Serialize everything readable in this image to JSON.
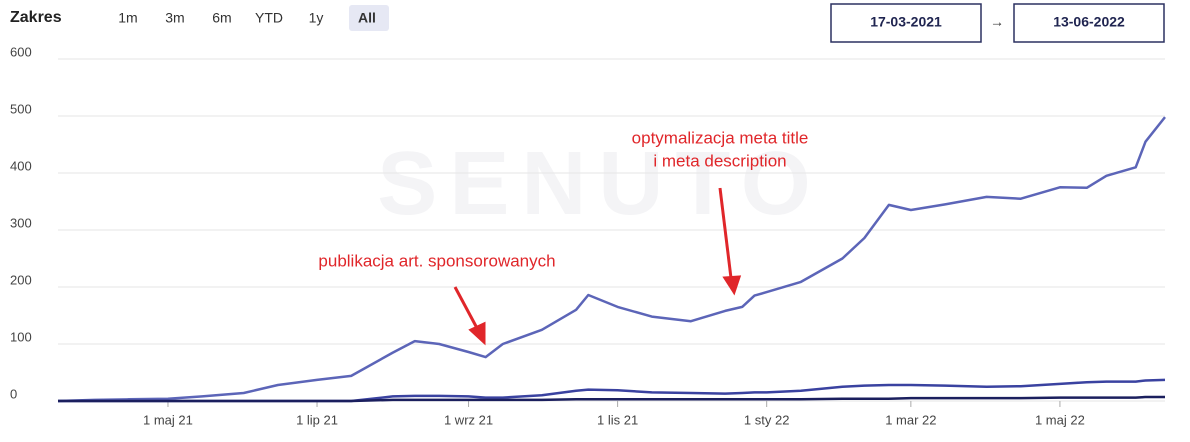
{
  "toolbar": {
    "label": "Zakres",
    "ranges": [
      "1m",
      "3m",
      "6m",
      "YTD",
      "1y",
      "All"
    ],
    "active": 5
  },
  "date_range": {
    "from": "17-03-2021",
    "separator": "→",
    "to": "13-06-2022"
  },
  "chart_data": {
    "type": "line",
    "watermark": "SENUTO",
    "x": [
      "2021-03-17",
      "2021-04-01",
      "2021-04-15",
      "2021-05-01",
      "2021-05-15",
      "2021-06-01",
      "2021-06-15",
      "2021-07-01",
      "2021-07-15",
      "2021-08-01",
      "2021-08-10",
      "2021-08-20",
      "2021-09-01",
      "2021-09-08",
      "2021-09-15",
      "2021-10-01",
      "2021-10-15",
      "2021-10-20",
      "2021-11-01",
      "2021-11-15",
      "2021-12-01",
      "2021-12-15",
      "2021-12-22",
      "2021-12-27",
      "2022-01-01",
      "2022-01-15",
      "2022-02-01",
      "2022-02-10",
      "2022-02-20",
      "2022-03-01",
      "2022-03-15",
      "2022-04-01",
      "2022-04-15",
      "2022-05-01",
      "2022-05-12",
      "2022-05-20",
      "2022-06-01",
      "2022-06-05",
      "2022-06-13"
    ],
    "series": [
      {
        "color": "#5c65b8",
        "values": [
          0,
          2,
          3,
          4,
          8,
          14,
          28,
          37,
          44,
          85,
          105,
          100,
          86,
          77,
          100,
          125,
          160,
          186,
          165,
          148,
          140,
          158,
          165,
          185,
          191,
          209,
          250,
          286,
          344,
          335,
          345,
          358,
          355,
          375,
          374,
          395,
          410,
          455,
          498
        ]
      },
      {
        "color": "#3a42a0",
        "values": [
          0,
          0,
          0,
          0,
          0,
          0,
          0,
          0,
          0,
          8,
          9,
          9,
          8,
          6,
          6,
          10,
          18,
          20,
          19,
          15,
          14,
          13,
          14,
          15,
          15,
          18,
          25,
          27,
          28,
          28,
          27,
          25,
          26,
          30,
          33,
          34,
          34,
          36,
          37
        ]
      },
      {
        "color": "#1b1f5e",
        "values": [
          0,
          0,
          0,
          0,
          0,
          0,
          0,
          0,
          0,
          2,
          2,
          2,
          2,
          2,
          2,
          2,
          3,
          3,
          3,
          3,
          3,
          3,
          3,
          3,
          3,
          3,
          4,
          4,
          4,
          5,
          5,
          5,
          5,
          6,
          6,
          6,
          6,
          7,
          7
        ]
      }
    ],
    "xlim": [
      "2021-03-17",
      "2022-06-13"
    ],
    "xticks": [
      {
        "value": "2021-05-01",
        "label": "1 maj 21"
      },
      {
        "value": "2021-07-01",
        "label": "1 lip 21"
      },
      {
        "value": "2021-09-01",
        "label": "1 wrz 21"
      },
      {
        "value": "2021-11-01",
        "label": "1 lis 21"
      },
      {
        "value": "2022-01-01",
        "label": "1 sty 22"
      },
      {
        "value": "2022-03-01",
        "label": "1 mar 22"
      },
      {
        "value": "2022-05-01",
        "label": "1 maj 22"
      }
    ],
    "ylim": [
      0,
      600
    ],
    "yticks": [
      0,
      100,
      200,
      300,
      400,
      500,
      600
    ],
    "grid": true,
    "annotations": [
      {
        "text": "publikacja art. sponsorowanych"
      },
      {
        "lines": [
          "optymalizacja meta title",
          "i meta description"
        ]
      }
    ],
    "annotation_color": "#e0262a"
  }
}
